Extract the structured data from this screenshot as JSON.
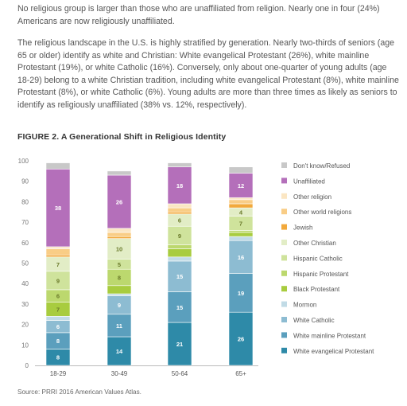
{
  "paragraphs": [
    "No religious group is larger than those who are unaffiliated from religion. Nearly one in four (24%) Americans are now religiously unaffiliated.",
    "The religious landscape in the U.S. is highly stratified by generation. Nearly two-thirds of seniors (age 65 or older) identify as white and Christian: White evangelical Protestant (26%), white mainline Protestant (19%), or white Catholic (16%). Conversely, only about one-quarter of young adults (age 18-29) belong to a white Christian tradition, including white evangelical Protestant (8%), white mainline Protestant (8%), or white Catholic (6%). Young adults are more than three times as likely as seniors to identify as religiously unaffiliated (38% vs. 12%, respectively)."
  ],
  "figure_title": "FIGURE 2.  A Generational Shift in Religious Identity",
  "source": "Source: PRRI 2016 American Values Atlas.",
  "chart_data": {
    "type": "bar",
    "stacked": true,
    "categories": [
      "18-29",
      "30-49",
      "50-64",
      "65+"
    ],
    "ylim": [
      0,
      100
    ],
    "yticks": [
      0,
      10,
      20,
      30,
      40,
      50,
      60,
      70,
      80,
      90,
      100
    ],
    "series": [
      {
        "name": "White evangelical Protestant",
        "color": "#2e8aa8",
        "values": [
          8,
          14,
          21,
          26
        ],
        "labels": [
          "8",
          "14",
          "21",
          "26"
        ]
      },
      {
        "name": "White mainline Protestant",
        "color": "#5b9fbd",
        "values": [
          8,
          11,
          15,
          19
        ],
        "labels": [
          "8",
          "11",
          "15",
          "19"
        ]
      },
      {
        "name": "White Catholic",
        "color": "#8dbcd2",
        "values": [
          6,
          9,
          15,
          16
        ],
        "labels": [
          "6",
          "9",
          "15",
          "16"
        ]
      },
      {
        "name": "Mormon",
        "color": "#c1dbe6",
        "values": [
          2,
          1,
          2,
          2
        ],
        "labels": [
          "",
          "",
          "",
          ""
        ]
      },
      {
        "name": "Black Protestant",
        "color": "#a8cc3f",
        "values": [
          7,
          4,
          4,
          2
        ],
        "labels": [
          "7",
          "",
          "",
          ""
        ]
      },
      {
        "name": "Hispanic Protestant",
        "color": "#bcd86e",
        "values": [
          6,
          8,
          2,
          1
        ],
        "labels": [
          "6",
          "8",
          "",
          ""
        ]
      },
      {
        "name": "Hispanic Catholic",
        "color": "#cfe39c",
        "values": [
          9,
          5,
          9,
          7
        ],
        "labels": [
          "9",
          "5",
          "9",
          "7"
        ]
      },
      {
        "name": "Other Christian",
        "color": "#e2edc6",
        "values": [
          7,
          10,
          6,
          4
        ],
        "labels": [
          "7",
          "10",
          "6",
          "4"
        ]
      },
      {
        "name": "Jewish",
        "color": "#f2a93b",
        "values": [
          1,
          1,
          1,
          2
        ],
        "labels": [
          "",
          "",
          "",
          ""
        ]
      },
      {
        "name": "Other world religions",
        "color": "#f9cd86",
        "values": [
          3,
          2,
          2,
          2
        ],
        "labels": [
          "",
          "",
          "",
          ""
        ]
      },
      {
        "name": "Other religion",
        "color": "#fbe6c3",
        "values": [
          1,
          2,
          2,
          1
        ],
        "labels": [
          "",
          "",
          "",
          ""
        ]
      },
      {
        "name": "Unaffiliated",
        "color": "#b46fba",
        "values": [
          38,
          26,
          18,
          12
        ],
        "labels": [
          "38",
          "26",
          "18",
          "12"
        ]
      },
      {
        "name": "Don't know/Refused",
        "color": "#c8c8c8",
        "values": [
          3,
          2,
          2,
          3
        ],
        "labels": [
          "",
          "",
          "",
          ""
        ]
      }
    ]
  }
}
